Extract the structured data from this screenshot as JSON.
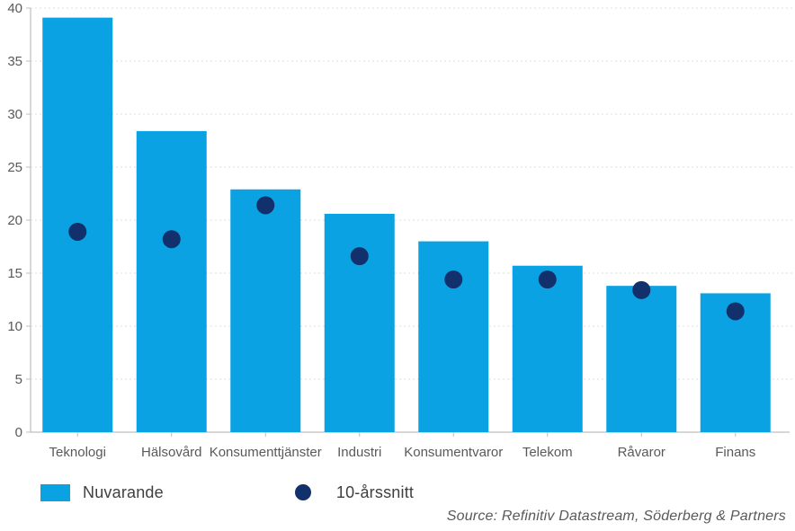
{
  "chart_data": {
    "type": "bar",
    "title": "",
    "xlabel": "",
    "ylabel": "",
    "categories": [
      "Teknologi",
      "Hälsovård",
      "Konsumenttjänster",
      "Industri",
      "Konsumentvaror",
      "Telekom",
      "Råvaror",
      "Finans"
    ],
    "series": [
      {
        "name": "Nuvarande",
        "type": "bar",
        "color": "#0aa2e2",
        "values": [
          39.1,
          28.4,
          22.9,
          20.6,
          18.0,
          15.7,
          13.8,
          13.1
        ]
      },
      {
        "name": "10-årssnitt",
        "type": "scatter",
        "color": "#12306b",
        "values": [
          18.9,
          18.2,
          21.4,
          16.6,
          14.4,
          14.4,
          13.4,
          11.4
        ]
      }
    ],
    "ylim": [
      0,
      40
    ],
    "ytick_interval": 5,
    "ytick_labels": [
      "0",
      "5",
      "10",
      "15",
      "20",
      "25",
      "30",
      "35",
      "40"
    ],
    "grid": true,
    "gridline_style": "dotted",
    "legend_position": "bottom-left"
  },
  "legend": {
    "items": [
      {
        "label": "Nuvarande",
        "marker": "rect",
        "color": "#0aa2e2"
      },
      {
        "label": "10-årssnitt",
        "marker": "circle",
        "color": "#12306b"
      }
    ]
  },
  "source_text": "Source: Refinitiv Datastream, Söderberg & Partners",
  "colors": {
    "bar": "#0aa2e2",
    "dot": "#12306b",
    "gridline": "#dedede",
    "axis": "#bfbfbf",
    "tick_label": "#595959",
    "background": "#ffffff"
  }
}
